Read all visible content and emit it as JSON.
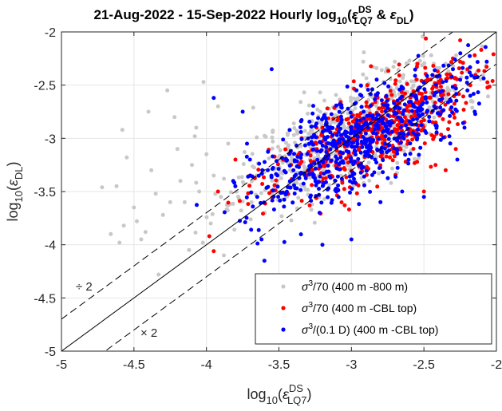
{
  "chart_data": {
    "type": "scatter",
    "title": {
      "start_date": "21-Aug-2022",
      "separator": " - ",
      "end_date": "15-Sep-2022",
      "label": " Hourly log",
      "log_base": "10",
      "open_paren": "(",
      "eps1": "ε",
      "eps1_sup": "DS",
      "eps1_sub": "LQ7",
      "amp": " & ",
      "eps2": "ε",
      "eps2_sub": "DL",
      "close_paren": ")"
    },
    "xlabel": {
      "prefix": "log",
      "base": "10",
      "open": "(",
      "eps": "ε",
      "sup": "DS",
      "sub": "LQ7",
      "close": ")"
    },
    "ylabel": {
      "prefix": "log",
      "base": "10",
      "open": "(",
      "eps": "ε",
      "sub": "DL",
      "close": ")"
    },
    "xlim": [
      -5,
      -2
    ],
    "ylim": [
      -5,
      -2
    ],
    "xticks": [
      "-5",
      "-4.5",
      "-4",
      "-3.5",
      "-3",
      "-2.5",
      "-2"
    ],
    "yticks": [
      "-5",
      "-4.5",
      "-4",
      "-3.5",
      "-3",
      "-2.5",
      "-2"
    ],
    "grid": true,
    "legend_position": "bottom-right",
    "annotations": {
      "divide": "÷ 2",
      "times": "× 2"
    },
    "reference_lines": [
      {
        "kind": "1:1",
        "style": "solid",
        "offset": 0
      },
      {
        "kind": "factor 2",
        "style": "dashed",
        "offset": 0.30103
      },
      {
        "kind": "factor 2",
        "style": "dashed",
        "offset": -0.30103
      }
    ],
    "series": [
      {
        "name": "σ³/70 (400 m -800 m)",
        "name_sigma": "σ",
        "name_sup": "3",
        "name_rest": "/70 (400 m -800 m)",
        "color": "#c8c8c8",
        "cluster": {
          "center": [
            -3.0,
            -2.95
          ],
          "spread": [
            0.38,
            0.33
          ],
          "count": 650,
          "seed": 11
        },
        "points": [
          [
            -4.72,
            -3.46
          ],
          [
            -4.62,
            -3.45
          ],
          [
            -4.58,
            -2.92
          ],
          [
            -4.55,
            -3.18
          ],
          [
            -4.5,
            -3.65
          ],
          [
            -4.45,
            -3.95
          ],
          [
            -4.42,
            -3.88
          ],
          [
            -4.4,
            -2.75
          ],
          [
            -4.38,
            -3.3
          ],
          [
            -4.33,
            -4.28
          ],
          [
            -4.3,
            -3.72
          ],
          [
            -4.27,
            -2.55
          ],
          [
            -4.22,
            -2.8
          ],
          [
            -4.2,
            -3.1
          ],
          [
            -4.18,
            -3.4
          ],
          [
            -4.15,
            -3.6
          ],
          [
            -4.12,
            -4.05
          ],
          [
            -4.1,
            -3.25
          ],
          [
            -4.07,
            -2.9
          ],
          [
            -4.05,
            -3.5
          ],
          [
            -4.02,
            -2.47
          ],
          [
            -4.0,
            -3.15
          ],
          [
            -3.97,
            -3.8
          ],
          [
            -3.95,
            -3.35
          ],
          [
            -3.92,
            -2.7
          ],
          [
            -3.9,
            -3.55
          ],
          [
            -3.88,
            -4.1
          ],
          [
            -3.85,
            -3.05
          ],
          [
            -4.66,
            -3.9
          ],
          [
            -4.6,
            -3.98
          ],
          [
            -4.57,
            -3.82
          ],
          [
            -4.48,
            -3.78
          ],
          [
            -4.25,
            -3.6
          ],
          [
            -4.35,
            -3.52
          ],
          [
            -4.08,
            -2.98
          ],
          [
            -2.45,
            -2.22
          ],
          [
            -2.55,
            -2.3
          ],
          [
            -2.6,
            -2.27
          ],
          [
            -2.7,
            -2.28
          ],
          [
            -2.75,
            -2.35
          ],
          [
            -2.85,
            -2.33
          ],
          [
            -2.92,
            -2.4
          ],
          [
            -2.35,
            -2.3
          ],
          [
            -2.4,
            -2.45
          ]
        ]
      },
      {
        "name": "σ³/70 (400 m -CBL top)",
        "name_sigma": "σ",
        "name_sup": "3",
        "name_rest": "/70 (400 m -CBL top)",
        "color": "#ff0000",
        "cluster": {
          "center": [
            -2.85,
            -2.95
          ],
          "spread": [
            0.34,
            0.3
          ],
          "count": 520,
          "seed": 23
        },
        "points": [
          [
            -3.98,
            -3.92
          ],
          [
            -3.95,
            -4.06
          ],
          [
            -3.92,
            -3.5
          ],
          [
            -3.8,
            -3.2
          ],
          [
            -3.7,
            -3.35
          ],
          [
            -2.3,
            -2.25
          ],
          [
            -2.25,
            -2.28
          ],
          [
            -2.2,
            -2.35
          ],
          [
            -2.18,
            -2.5
          ],
          [
            -2.15,
            -2.22
          ],
          [
            -2.22,
            -2.85
          ],
          [
            -2.28,
            -3.1
          ],
          [
            -2.35,
            -3.3
          ],
          [
            -2.42,
            -3.25
          ],
          [
            -2.5,
            -3.5
          ],
          [
            -2.38,
            -2.65
          ],
          [
            -2.32,
            -2.4
          ]
        ]
      },
      {
        "name": "σ³/(0.1 D) (400 m -CBL top)",
        "name_sigma": "σ",
        "name_sup": "3",
        "name_rest": "/(0.1 D) (400 m -CBL top)",
        "color": "#0000ff",
        "cluster": {
          "center": [
            -2.95,
            -3.0
          ],
          "spread": [
            0.36,
            0.32
          ],
          "count": 620,
          "seed": 37
        },
        "points": [
          [
            -3.75,
            -2.75
          ],
          [
            -3.62,
            -3.95
          ],
          [
            -3.6,
            -4.15
          ],
          [
            -3.55,
            -2.35
          ],
          [
            -3.7,
            -3.2
          ],
          [
            -3.65,
            -3.55
          ],
          [
            -3.72,
            -3.05
          ],
          [
            -2.2,
            -2.55
          ],
          [
            -2.18,
            -2.6
          ],
          [
            -2.15,
            -2.75
          ],
          [
            -2.22,
            -2.9
          ],
          [
            -2.27,
            -3.2
          ],
          [
            -2.5,
            -3.55
          ],
          [
            -2.65,
            -3.5
          ],
          [
            -2.8,
            -3.6
          ],
          [
            -3.0,
            -3.95
          ],
          [
            -3.2,
            -4.0
          ],
          [
            -3.95,
            -2.62
          ],
          [
            -2.3,
            -2.35
          ],
          [
            -2.25,
            -2.45
          ]
        ]
      }
    ]
  }
}
